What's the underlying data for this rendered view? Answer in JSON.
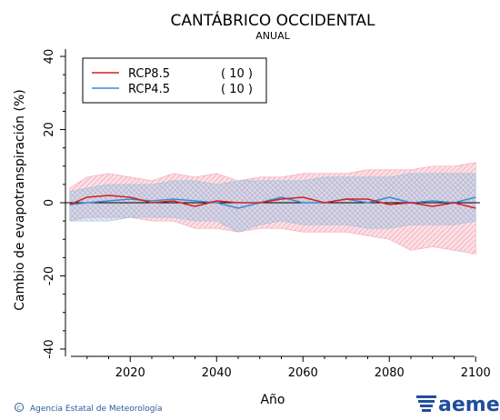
{
  "chart_data": {
    "type": "line",
    "title": "CANTÁBRICO OCCIDENTAL",
    "subtitle": "ANUAL",
    "xlabel": "Año",
    "ylabel": "Cambio de evapotranspiración (%)",
    "xlim": [
      2005,
      2101
    ],
    "ylim": [
      -42,
      42
    ],
    "x_ticks": [
      2020,
      2040,
      2060,
      2080,
      2100
    ],
    "y_ticks": [
      -40,
      -20,
      0,
      20,
      40
    ],
    "grid": false,
    "legend_position": "top-left",
    "x": [
      2006,
      2010,
      2015,
      2020,
      2025,
      2030,
      2035,
      2040,
      2045,
      2050,
      2055,
      2060,
      2065,
      2070,
      2075,
      2080,
      2085,
      2090,
      2095,
      2100
    ],
    "series": [
      {
        "name": "RCP8.5",
        "count_label": "( 10 )",
        "color": "#d42020",
        "band_color": "#f4a6b4",
        "values": [
          -0.5,
          1.5,
          2,
          1.5,
          0,
          0.5,
          -1,
          0.5,
          0,
          0,
          1,
          1.5,
          0,
          1,
          1,
          -0.5,
          0,
          -1,
          0,
          -1.5
        ],
        "upper": [
          4,
          7,
          8,
          7,
          6,
          8,
          7,
          8,
          6,
          7,
          7,
          8,
          8,
          8,
          9,
          9,
          9,
          10,
          10,
          11
        ],
        "lower": [
          -5,
          -4,
          -4,
          -4,
          -5,
          -5,
          -7,
          -7,
          -8,
          -7,
          -7,
          -8,
          -8,
          -8,
          -9,
          -10,
          -13,
          -12,
          -13,
          -14
        ]
      },
      {
        "name": "RCP4.5",
        "count_label": "( 10 )",
        "color": "#3a8ad8",
        "band_color": "#9cc3e4",
        "values": [
          -0.5,
          0,
          0.5,
          1,
          0.5,
          1,
          0.5,
          0,
          -1.5,
          0,
          1.5,
          0,
          0,
          1,
          0,
          1.5,
          0,
          0.5,
          0,
          1.5
        ],
        "upper": [
          3,
          4,
          5,
          5,
          5,
          6,
          6,
          5,
          6,
          6,
          6,
          6,
          7,
          7,
          7,
          7,
          8,
          8,
          8,
          8
        ],
        "lower": [
          -5,
          -5,
          -5,
          -4,
          -4,
          -4,
          -5,
          -5,
          -8,
          -6,
          -5,
          -6,
          -6,
          -6,
          -7,
          -7,
          -6,
          -6,
          -6,
          -5
        ]
      }
    ]
  },
  "footer": {
    "credit": "Agencia Estatal de Meteorología",
    "logo_text": "aemet"
  },
  "colors": {
    "axis": "#000000",
    "zero_line": "#000000",
    "footer_text": "#2a5aa0",
    "logo": "#1f4e9a"
  }
}
